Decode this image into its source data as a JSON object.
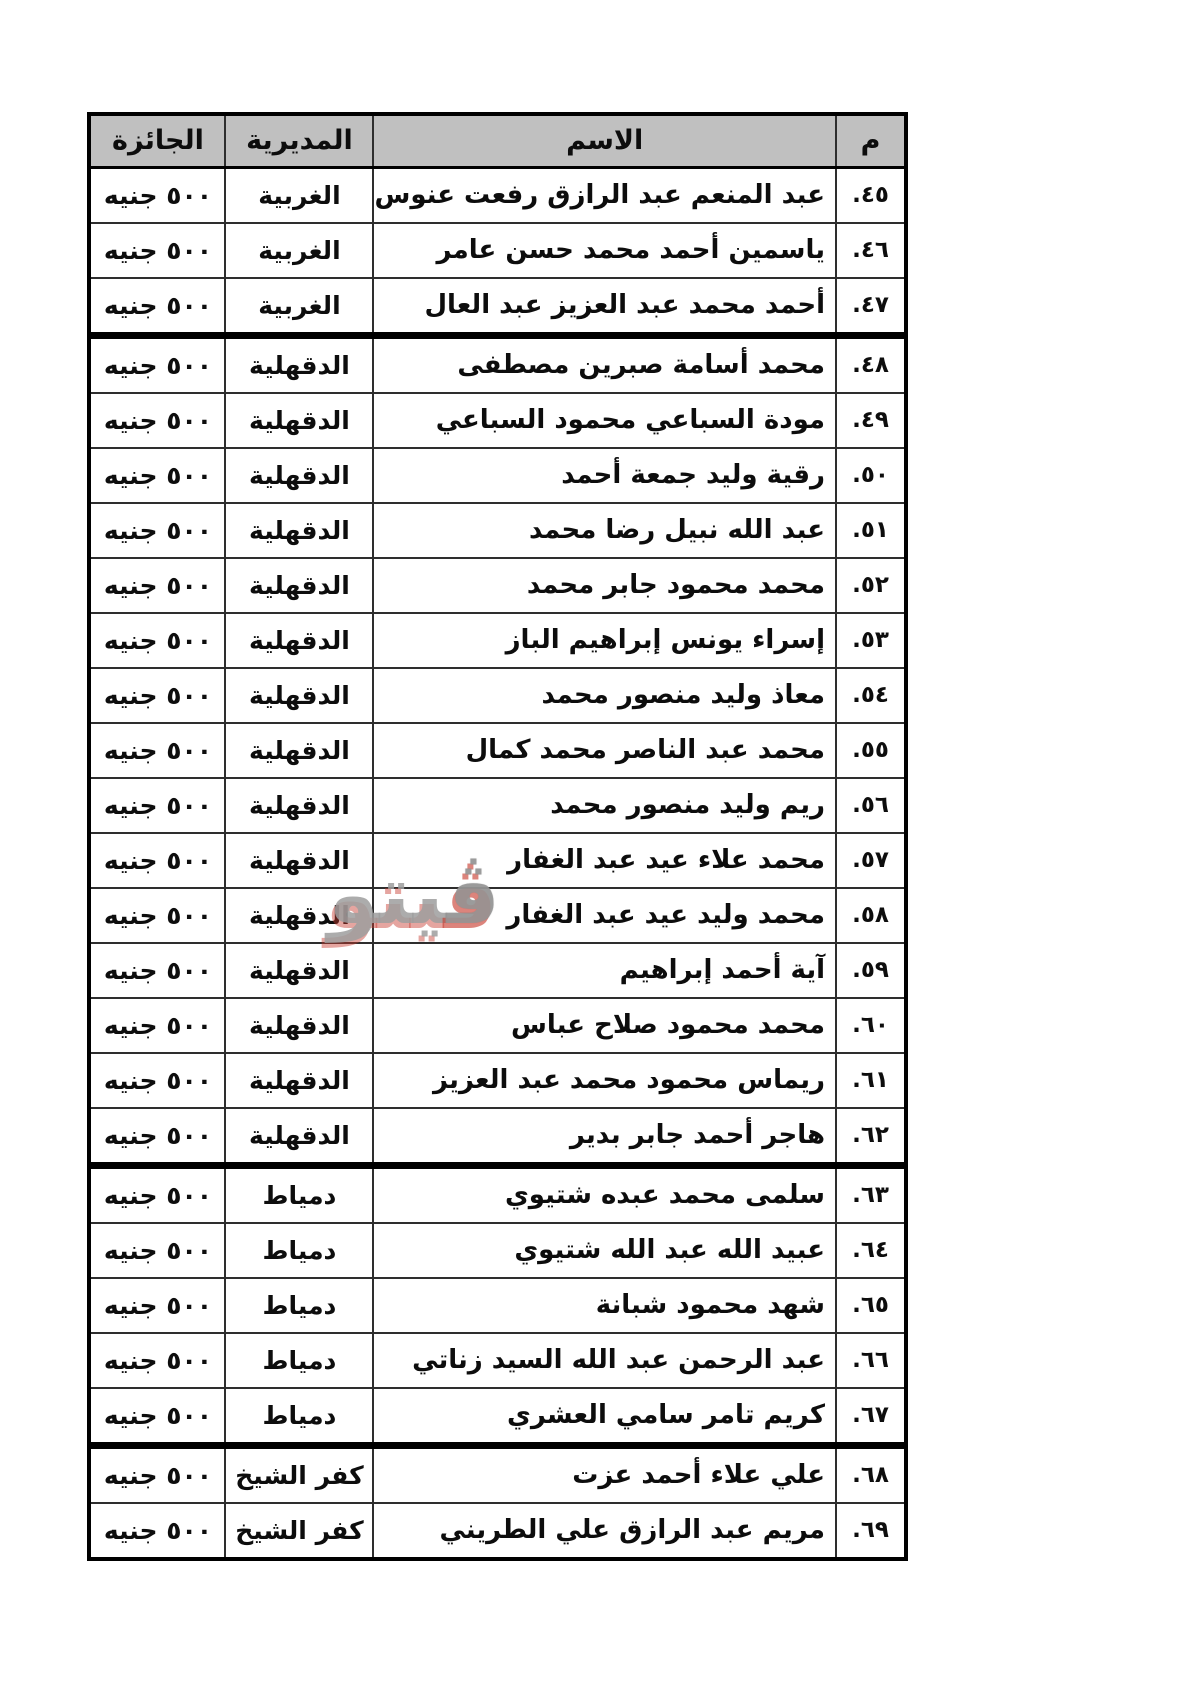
{
  "table": {
    "headers": {
      "num": "م",
      "name": "الاسم",
      "directorate": "المديرية",
      "prize": "الجائزة"
    },
    "header_bg": "#c0c0c0",
    "rows": [
      {
        "num": "٤٥.",
        "name": "عبد المنعم عبد الرازق رفعت عنوس",
        "directorate": "الغربية",
        "prize": "٥٠٠ جنيه",
        "group_end": false
      },
      {
        "num": "٤٦.",
        "name": "ياسمين أحمد محمد حسن عامر",
        "directorate": "الغربية",
        "prize": "٥٠٠ جنيه",
        "group_end": false
      },
      {
        "num": "٤٧.",
        "name": "أحمد محمد عبد العزيز عبد العال",
        "directorate": "الغربية",
        "prize": "٥٠٠ جنيه",
        "group_end": true
      },
      {
        "num": "٤٨.",
        "name": "محمد أسامة صبرين مصطفى",
        "directorate": "الدقهلية",
        "prize": "٥٠٠ جنيه",
        "group_end": false
      },
      {
        "num": "٤٩.",
        "name": "مودة السباعي محمود السباعي",
        "directorate": "الدقهلية",
        "prize": "٥٠٠ جنيه",
        "group_end": false
      },
      {
        "num": "٥٠.",
        "name": "رقية وليد جمعة أحمد",
        "directorate": "الدقهلية",
        "prize": "٥٠٠ جنيه",
        "group_end": false
      },
      {
        "num": "٥١.",
        "name": "عبد الله نبيل رضا محمد",
        "directorate": "الدقهلية",
        "prize": "٥٠٠ جنيه",
        "group_end": false
      },
      {
        "num": "٥٢.",
        "name": "محمد محمود جابر محمد",
        "directorate": "الدقهلية",
        "prize": "٥٠٠ جنيه",
        "group_end": false
      },
      {
        "num": "٥٣.",
        "name": "إسراء يونس إبراهيم الباز",
        "directorate": "الدقهلية",
        "prize": "٥٠٠ جنيه",
        "group_end": false
      },
      {
        "num": "٥٤.",
        "name": "معاذ وليد منصور محمد",
        "directorate": "الدقهلية",
        "prize": "٥٠٠ جنيه",
        "group_end": false
      },
      {
        "num": "٥٥.",
        "name": "محمد عبد الناصر محمد كمال",
        "directorate": "الدقهلية",
        "prize": "٥٠٠ جنيه",
        "group_end": false
      },
      {
        "num": "٥٦.",
        "name": "ريم وليد منصور محمد",
        "directorate": "الدقهلية",
        "prize": "٥٠٠ جنيه",
        "group_end": false
      },
      {
        "num": "٥٧.",
        "name": "محمد علاء عيد عبد الغفار",
        "directorate": "الدقهلية",
        "prize": "٥٠٠ جنيه",
        "group_end": false
      },
      {
        "num": "٥٨.",
        "name": "محمد وليد عيد عبد الغفار",
        "directorate": "الدقهلية",
        "prize": "٥٠٠ جنيه",
        "group_end": false
      },
      {
        "num": "٥٩.",
        "name": "آية أحمد إبراهيم",
        "directorate": "الدقهلية",
        "prize": "٥٠٠ جنيه",
        "group_end": false
      },
      {
        "num": "٦٠.",
        "name": "محمد محمود صلاح عباس",
        "directorate": "الدقهلية",
        "prize": "٥٠٠ جنيه",
        "group_end": false
      },
      {
        "num": "٦١.",
        "name": "ريماس محمود محمد عبد العزيز",
        "directorate": "الدقهلية",
        "prize": "٥٠٠ جنيه",
        "group_end": false
      },
      {
        "num": "٦٢.",
        "name": "هاجر أحمد جابر بدير",
        "directorate": "الدقهلية",
        "prize": "٥٠٠ جنيه",
        "group_end": true
      },
      {
        "num": "٦٣.",
        "name": "سلمى محمد عبده شتيوي",
        "directorate": "دمياط",
        "prize": "٥٠٠ جنيه",
        "group_end": false
      },
      {
        "num": "٦٤.",
        "name": "عبيد الله عبد الله شتيوي",
        "directorate": "دمياط",
        "prize": "٥٠٠ جنيه",
        "group_end": false
      },
      {
        "num": "٦٥.",
        "name": "شهد محمود شبانة",
        "directorate": "دمياط",
        "prize": "٥٠٠ جنيه",
        "group_end": false
      },
      {
        "num": "٦٦.",
        "name": "عبد الرحمن عبد الله السيد زناتي",
        "directorate": "دمياط",
        "prize": "٥٠٠ جنيه",
        "group_end": false
      },
      {
        "num": "٦٧.",
        "name": "كريم تامر سامي العشري",
        "directorate": "دمياط",
        "prize": "٥٠٠ جنيه",
        "group_end": true
      },
      {
        "num": "٦٨.",
        "name": "علي علاء أحمد عزت",
        "directorate": "كفر الشيخ",
        "prize": "٥٠٠ جنيه",
        "group_end": false
      },
      {
        "num": "٦٩.",
        "name": "مريم عبد الرازق علي الطريني",
        "directorate": "كفر الشيخ",
        "prize": "٥٠٠ جنيه",
        "group_end": false
      }
    ]
  },
  "watermark": {
    "first_letter": "ڤ",
    "rest": "يتو",
    "gray": "#9e9e9e",
    "red": "#c6382c"
  }
}
